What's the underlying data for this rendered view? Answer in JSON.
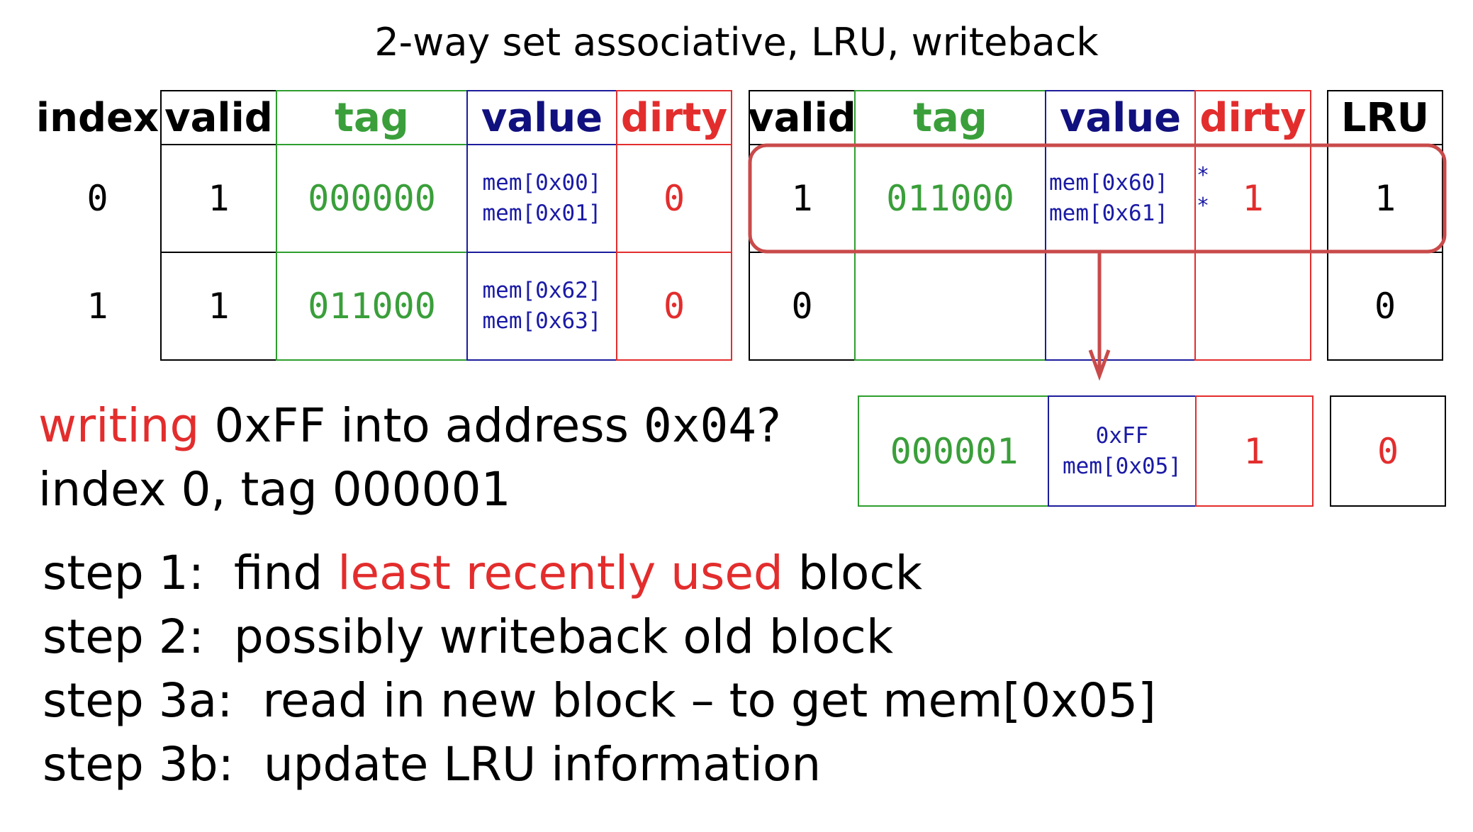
{
  "title": "2-way set associative, LRU, writeback",
  "table": {
    "headers": {
      "index": "index",
      "valid": "valid",
      "tag": "tag",
      "value": "value",
      "dirty": "dirty",
      "lru": "LRU"
    },
    "rows": [
      {
        "index": "0",
        "way0": {
          "valid": "1",
          "tag": "000000",
          "value": [
            "mem[0x00]",
            "mem[0x01]"
          ],
          "dirty": "0"
        },
        "way1": {
          "valid": "1",
          "tag": "011000",
          "value": [
            "mem[0x60]",
            "mem[0x61]"
          ],
          "value_marks": [
            "*",
            "*"
          ],
          "dirty": "1"
        },
        "lru": "1"
      },
      {
        "index": "1",
        "way0": {
          "valid": "1",
          "tag": "011000",
          "value": [
            "mem[0x62]",
            "mem[0x63]"
          ],
          "dirty": "0"
        },
        "way1": {
          "valid": "0",
          "tag": "",
          "value": [
            "",
            ""
          ],
          "dirty": ""
        },
        "lru": "0"
      }
    ]
  },
  "new_block": {
    "tag": "000001",
    "value": [
      "0xFF",
      "mem[0x05]"
    ],
    "dirty": "1",
    "lru": "0"
  },
  "question": {
    "highlight": "writing",
    "rest": " 0xFF into address ",
    "address": "0x04",
    "end": "?",
    "line2": "index 0, tag 000001"
  },
  "steps": [
    {
      "prefix": "step 1:  find ",
      "highlight": "least recently used",
      "suffix": " block"
    },
    {
      "prefix": "step 2:  possibly writeback old block",
      "highlight": "",
      "suffix": ""
    },
    {
      "prefix": "step 3a:  read in new block – to get mem[0x05]",
      "highlight": "",
      "suffix": ""
    },
    {
      "prefix": "step 3b:  update LRU information",
      "highlight": "",
      "suffix": ""
    }
  ],
  "colors": {
    "tag": "#3a9f3a",
    "value": "#10107e",
    "dirty": "#e32d2d",
    "highlight_box": "#c94a4a"
  }
}
